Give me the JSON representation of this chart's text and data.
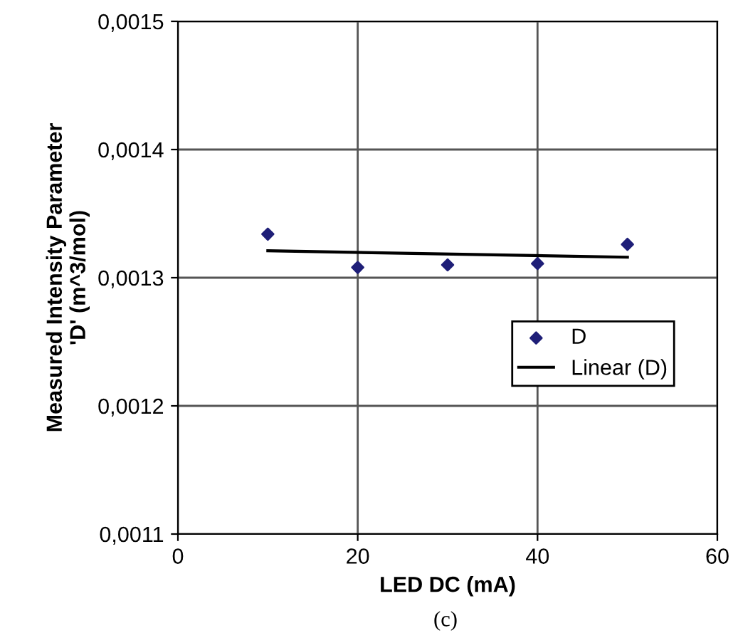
{
  "chart_data": {
    "type": "scatter",
    "xlabel": "LED DC (mA)",
    "ylabel": "Measured Intensity Parameter\n'D' (m^3/mol)",
    "annotations": [
      "(c)"
    ],
    "series": [
      {
        "name": "D",
        "color": "#1f1f78",
        "marker": "diamond",
        "x": [
          10,
          20,
          30,
          40,
          50
        ],
        "values": [
          0.001334,
          0.001308,
          0.00131,
          0.001311,
          0.001326
        ]
      },
      {
        "name": "Linear (D)",
        "type": "line",
        "color": "#000000",
        "line_style": "solid",
        "x": [
          10,
          50
        ],
        "values": [
          0.001321,
          0.001316
        ]
      }
    ],
    "xlim": [
      0,
      60
    ],
    "xticks": [
      0,
      20,
      40,
      60
    ],
    "ylim": [
      0.0011,
      0.0015
    ],
    "yticks": [
      {
        "value": 0.0011,
        "label": "0,0011"
      },
      {
        "value": 0.0012,
        "label": "0,0012"
      },
      {
        "value": 0.0013,
        "label": "0,0013"
      },
      {
        "value": 0.0014,
        "label": "0,0014"
      },
      {
        "value": 0.0015,
        "label": "0,0015"
      }
    ],
    "grid": true,
    "legend": "right"
  }
}
